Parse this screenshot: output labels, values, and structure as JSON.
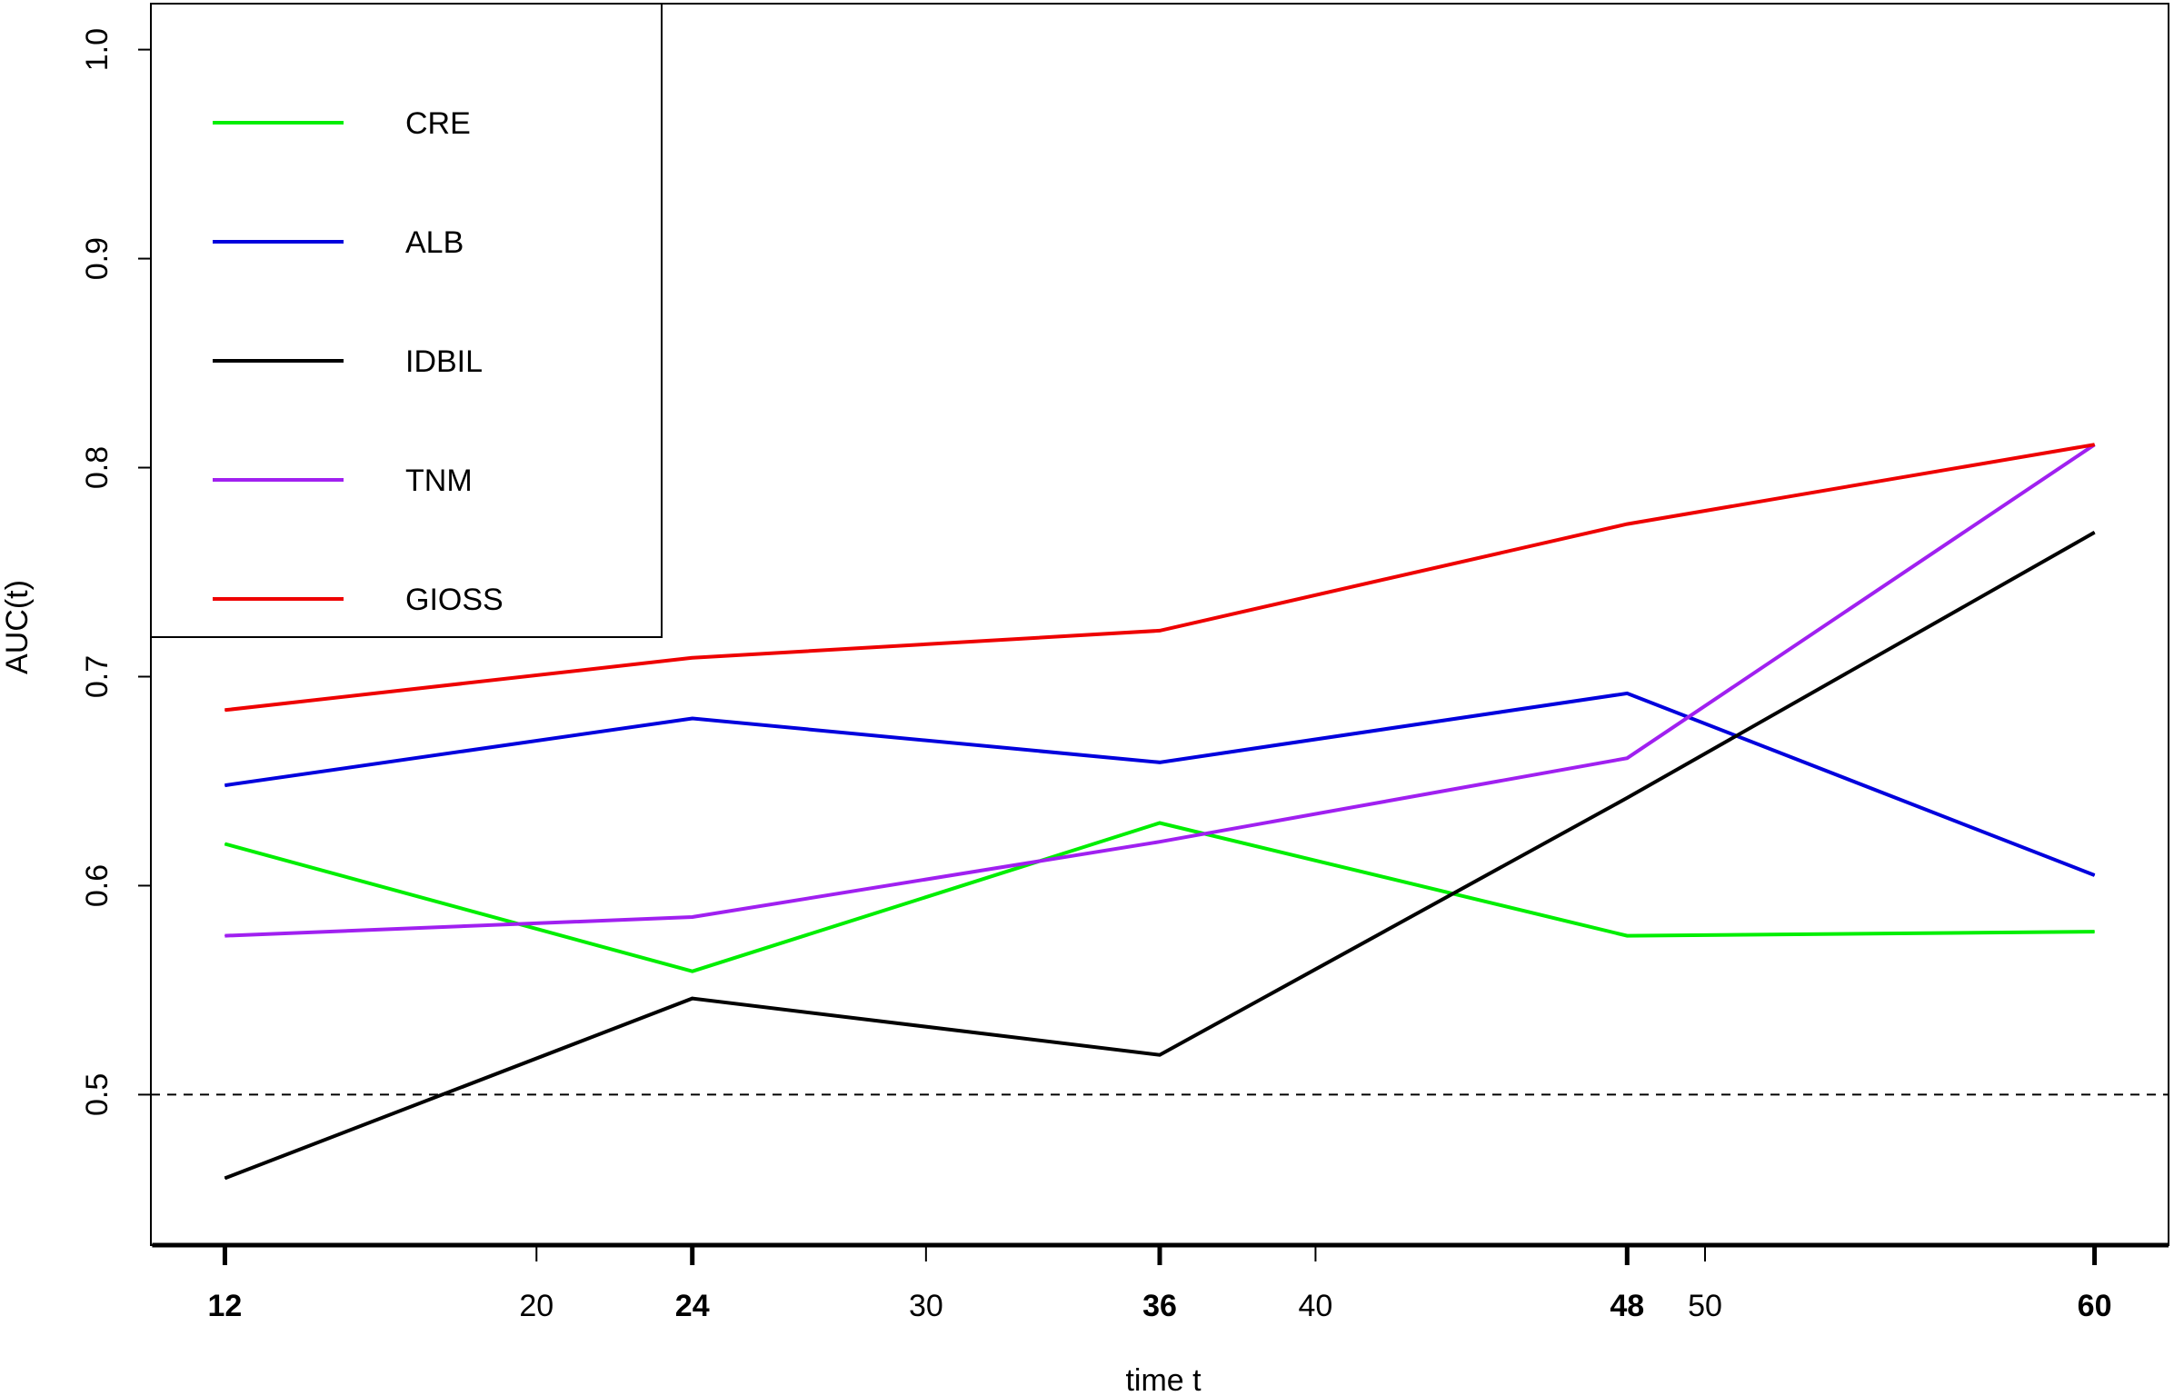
{
  "chart_data": {
    "type": "line",
    "title": "",
    "xlabel": "time t",
    "ylabel": "AUC(t)",
    "xlim": [
      10.1,
      61.9
    ],
    "ylim": [
      0.428,
      1.022
    ],
    "x": [
      12,
      24,
      36,
      48,
      60
    ],
    "x_ticks": [
      20,
      30,
      40,
      50
    ],
    "x_ticks_bold": [
      12,
      24,
      36,
      48,
      60
    ],
    "y_ticks": [
      0.5,
      0.6,
      0.7,
      0.8,
      0.9,
      1.0
    ],
    "y_tick_labels": [
      "0.5",
      "0.6",
      "0.7",
      "0.8",
      "0.9",
      "1.0"
    ],
    "reference_line": {
      "y": 0.5,
      "style": "dashed"
    },
    "legend_position": "top-left",
    "grid": false,
    "series": [
      {
        "name": "CRE",
        "color": "#00ee00",
        "values": [
          0.62,
          0.559,
          0.63,
          0.576,
          0.578
        ]
      },
      {
        "name": "ALB",
        "color": "#0000dd",
        "values": [
          0.648,
          0.68,
          0.659,
          0.692,
          0.605
        ]
      },
      {
        "name": "IDBIL",
        "color": "#000000",
        "values": [
          0.46,
          0.546,
          0.519,
          0.642,
          0.769
        ]
      },
      {
        "name": "TNM",
        "color": "#a020f0",
        "values": [
          0.576,
          0.585,
          0.621,
          0.661,
          0.811
        ]
      },
      {
        "name": "GIOSS",
        "color": "#ee0000",
        "values": [
          0.684,
          0.709,
          0.722,
          0.773,
          0.811
        ]
      }
    ]
  }
}
